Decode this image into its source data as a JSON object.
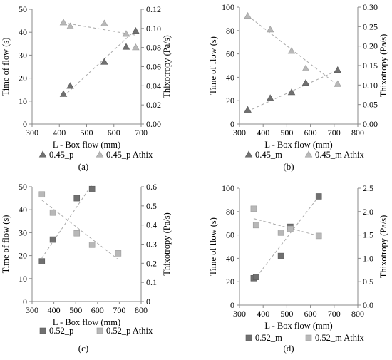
{
  "chart_data": [
    {
      "type": "scatter",
      "panel_label": "(a)",
      "xlabel": "L - Box flow (mm)",
      "ylabel": "Time of flow (s)",
      "y2label": "Thixotropy (Pa/s)",
      "xlim": [
        300,
        700
      ],
      "ylim": [
        0,
        50
      ],
      "y2lim": [
        0,
        0.12
      ],
      "xticks": [
        "300",
        "400",
        "500",
        "600",
        "700"
      ],
      "yticks": [
        "0",
        "10",
        "20",
        "30",
        "40",
        "50"
      ],
      "y2ticks": [
        "0.00",
        "0.02",
        "0.04",
        "0.06",
        "0.08",
        "0.10",
        "0.12"
      ],
      "marker": "triangle",
      "series": [
        {
          "name": "0.45_p",
          "axis": "left",
          "color": "#707070",
          "x": [
            415,
            440,
            565,
            645,
            680
          ],
          "y": [
            13,
            16.5,
            27,
            33.5,
            40.5
          ],
          "trend": [
            [
              415,
              12
            ],
            [
              680,
              41
            ]
          ]
        },
        {
          "name": "0.45_p Athix",
          "axis": "right",
          "color": "#b8b8b8",
          "x": [
            415,
            440,
            565,
            645,
            680
          ],
          "y": [
            0.106,
            0.102,
            0.105,
            0.094,
            0.08
          ],
          "trend": [
            [
              415,
              0.106
            ],
            [
              680,
              0.093
            ]
          ]
        }
      ]
    },
    {
      "type": "scatter",
      "panel_label": "(b)",
      "xlabel": "L - Box flow (mm)",
      "ylabel": "Time of flow (s)",
      "y2label": "Thixotropy (Pa/s)",
      "xlim": [
        300,
        800
      ],
      "ylim": [
        0,
        100
      ],
      "y2lim": [
        0,
        0.3
      ],
      "xticks": [
        "300",
        "400",
        "500",
        "600",
        "700",
        "800"
      ],
      "yticks": [
        "0",
        "20",
        "40",
        "60",
        "80",
        "100"
      ],
      "y2ticks": [
        "0.00",
        "0.05",
        "0.10",
        "0.15",
        "0.20",
        "0.25",
        "0.30"
      ],
      "marker": "triangle",
      "series": [
        {
          "name": "0.45_m",
          "axis": "left",
          "color": "#707070",
          "x": [
            335,
            430,
            520,
            580,
            715
          ],
          "y": [
            12,
            22,
            27,
            35,
            46
          ],
          "trend": [
            [
              335,
              11
            ],
            [
              715,
              46
            ]
          ]
        },
        {
          "name": "0.45_m Athix",
          "axis": "right",
          "color": "#b8b8b8",
          "x": [
            335,
            430,
            520,
            580,
            715
          ],
          "y": [
            0.277,
            0.242,
            0.187,
            0.142,
            0.102
          ],
          "trend": [
            [
              335,
              0.278
            ],
            [
              715,
              0.1
            ]
          ]
        }
      ]
    },
    {
      "type": "scatter",
      "panel_label": "(c)",
      "xlabel": "L - Box flow (mm)",
      "ylabel": "Time of flow (s)",
      "y2label": "Thixotropy (Pa/s)",
      "xlim": [
        300,
        800
      ],
      "ylim": [
        0,
        50
      ],
      "y2lim": [
        0,
        0.6
      ],
      "xticks": [
        "300",
        "400",
        "500",
        "600",
        "700",
        "800"
      ],
      "yticks": [
        "0",
        "10",
        "20",
        "30",
        "40",
        "50"
      ],
      "y2ticks": [
        "0",
        "0.1",
        "0.2",
        "0.3",
        "0.4",
        "0.5",
        "0.6"
      ],
      "marker": "square",
      "series": [
        {
          "name": "0.52_p",
          "axis": "left",
          "color": "#707070",
          "x": [
            345,
            395,
            505,
            575
          ],
          "y": [
            17.5,
            27,
            45,
            49
          ],
          "trend": [
            [
              345,
              19
            ],
            [
              575,
              51
            ]
          ]
        },
        {
          "name": "0.52_p Athix",
          "axis": "right",
          "color": "#b8b8b8",
          "x": [
            345,
            395,
            505,
            575,
            695
          ],
          "y": [
            0.56,
            0.465,
            0.357,
            0.297,
            0.252
          ],
          "trend": [
            [
              345,
              0.53
            ],
            [
              695,
              0.22
            ]
          ]
        }
      ]
    },
    {
      "type": "scatter",
      "panel_label": "(d)",
      "xlabel": "L - Box flow (mm)",
      "ylabel": "Time of flow (s)",
      "y2label": "Thixotropy (Pa/s)",
      "xlim": [
        300,
        800
      ],
      "ylim": [
        0,
        100
      ],
      "y2lim": [
        0,
        2.5
      ],
      "xticks": [
        "300",
        "400",
        "500",
        "600",
        "700",
        "800"
      ],
      "yticks": [
        "0",
        "20",
        "40",
        "60",
        "80",
        "100"
      ],
      "y2ticks": [
        "0.0",
        "0.5",
        "1.0",
        "1.5",
        "2.0",
        "2.5"
      ],
      "marker": "square",
      "series": [
        {
          "name": "0.52_m",
          "axis": "left",
          "color": "#707070",
          "x": [
            360,
            370,
            475,
            515,
            635
          ],
          "y": [
            23,
            24,
            42,
            67,
            93
          ],
          "trend": [
            [
              360,
              21
            ],
            [
              635,
              93
            ]
          ]
        },
        {
          "name": "0.52_m Athix",
          "axis": "right",
          "color": "#b8b8b8",
          "x": [
            360,
            370,
            475,
            515,
            635
          ],
          "y": [
            2.06,
            1.71,
            1.55,
            1.63,
            1.48
          ],
          "trend": [
            [
              360,
              1.85
            ],
            [
              635,
              1.48
            ]
          ]
        }
      ]
    }
  ]
}
